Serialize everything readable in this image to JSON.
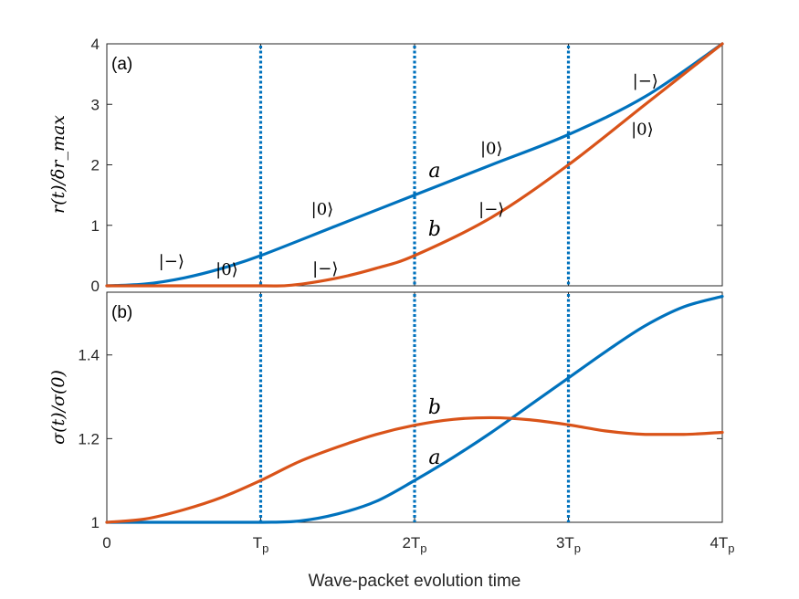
{
  "chart_data": [
    {
      "type": "line",
      "panel_label": "(a)",
      "ylabel": "r(t)/δr_max",
      "ylim": [
        0,
        4
      ],
      "xlim": [
        0,
        4
      ],
      "yticks": [
        "0",
        "1",
        "2",
        "3",
        "4"
      ],
      "xticks": [
        "0",
        "Tp",
        "2Tp",
        "3Tp",
        "4Tp"
      ],
      "colors": {
        "a": "#0072BD",
        "b": "#D95319",
        "vline": "#0072BD"
      },
      "vlines": [
        1,
        2,
        3
      ],
      "series": [
        {
          "name": "a",
          "x": [
            0,
            0.25,
            0.5,
            0.75,
            1,
            1.5,
            2,
            2.5,
            3,
            3.5,
            4
          ],
          "y": [
            0,
            0.03,
            0.13,
            0.29,
            0.5,
            1.0,
            1.5,
            2.0,
            2.5,
            3.13,
            4.0
          ]
        },
        {
          "name": "b",
          "x": [
            0,
            0.5,
            1,
            1.2,
            1.5,
            1.75,
            2,
            2.5,
            3,
            3.5,
            4
          ],
          "y": [
            0,
            0,
            0,
            0.01,
            0.13,
            0.29,
            0.5,
            1.13,
            2.0,
            3.0,
            4.0
          ]
        }
      ],
      "curve_labels": [
        {
          "text": "a",
          "x": 2.13,
          "y": 1.8
        },
        {
          "text": "b",
          "x": 2.13,
          "y": 0.83
        }
      ],
      "annotations": [
        {
          "text": "|−⟩",
          "x": 0.42,
          "y": 0.32
        },
        {
          "text": "|0⟩",
          "x": 0.78,
          "y": 0.18
        },
        {
          "text": "|−⟩",
          "x": 1.42,
          "y": 0.2
        },
        {
          "text": "|0⟩",
          "x": 1.4,
          "y": 1.18
        },
        {
          "text": "|−⟩",
          "x": 2.5,
          "y": 1.18
        },
        {
          "text": "|0⟩",
          "x": 2.5,
          "y": 2.18
        },
        {
          "text": "|−⟩",
          "x": 3.5,
          "y": 3.3
        },
        {
          "text": "|0⟩",
          "x": 3.48,
          "y": 2.5
        }
      ]
    },
    {
      "type": "line",
      "panel_label": "(b)",
      "ylabel": "σ(t)/σ(0)",
      "ylim": [
        1,
        1.55
      ],
      "xlim": [
        0,
        4
      ],
      "yticks": [
        "1",
        "1.2",
        "1.4"
      ],
      "xticks": [
        "0",
        "Tp",
        "2Tp",
        "3Tp",
        "4Tp"
      ],
      "xlabel": "Wave-packet evolution time",
      "colors": {
        "a": "#0072BD",
        "b": "#D95319",
        "vline": "#0072BD"
      },
      "vlines": [
        1,
        2,
        3
      ],
      "series": [
        {
          "name": "a",
          "x": [
            0,
            0.5,
            1,
            1.25,
            1.5,
            1.75,
            2,
            2.25,
            2.5,
            2.75,
            3,
            3.25,
            3.5,
            3.75,
            4
          ],
          "y": [
            1,
            1,
            1,
            1.003,
            1.02,
            1.05,
            1.1,
            1.155,
            1.215,
            1.28,
            1.345,
            1.41,
            1.47,
            1.515,
            1.54
          ]
        },
        {
          "name": "b",
          "x": [
            0,
            0.25,
            0.5,
            0.75,
            1,
            1.25,
            1.5,
            1.75,
            2,
            2.25,
            2.5,
            2.75,
            3,
            3.25,
            3.5,
            3.75,
            4
          ],
          "y": [
            1,
            1.008,
            1.03,
            1.06,
            1.1,
            1.145,
            1.18,
            1.21,
            1.232,
            1.246,
            1.25,
            1.245,
            1.233,
            1.218,
            1.21,
            1.21,
            1.215
          ]
        }
      ],
      "curve_labels": [
        {
          "text": "b",
          "x": 2.13,
          "y": 1.26
        },
        {
          "text": "a",
          "x": 2.13,
          "y": 1.14
        }
      ]
    }
  ]
}
